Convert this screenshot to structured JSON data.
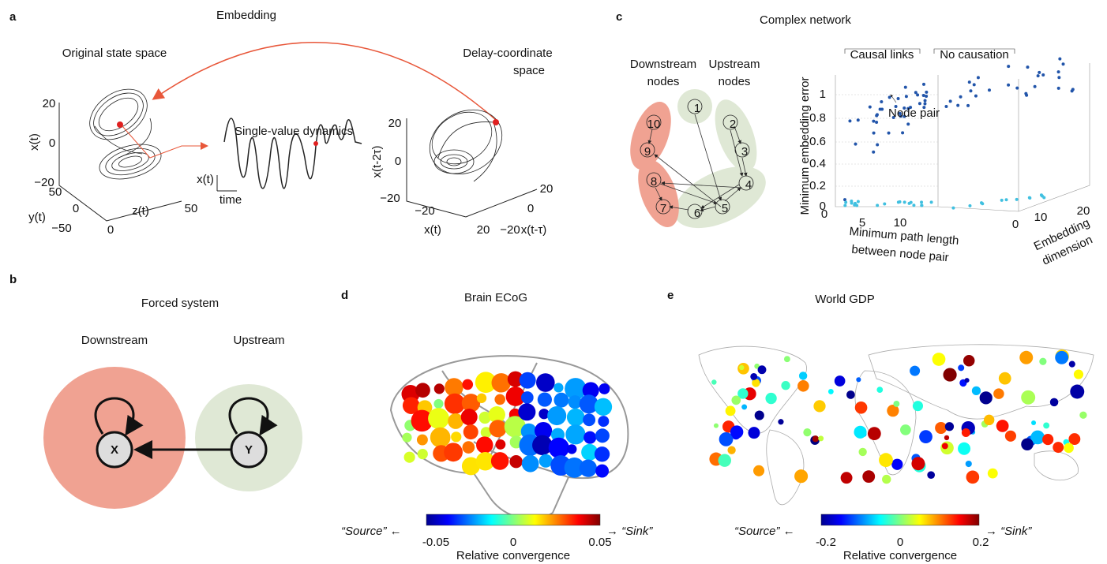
{
  "panel_a": {
    "label": "a",
    "title": "Embedding",
    "original": "Original state space",
    "delay": [
      "Delay-coordinate",
      "space"
    ],
    "single": "Single-value dynamics",
    "scale_y": "x(t)",
    "scale_x": "time",
    "left_axes": {
      "z_label": "x(t)",
      "z_ticks": [
        "20",
        "0",
        "−20"
      ],
      "y_label": "y(t)",
      "y_ticks": [
        "50",
        "0",
        "−50"
      ],
      "x_label": "z(t)",
      "x_ticks": [
        "0",
        "50"
      ]
    },
    "right_axes": {
      "z_label": "x(t-2τ)",
      "z_ticks": [
        "20",
        "0",
        "−20"
      ],
      "x_label": "x(t)",
      "x_ticks": [
        "−20",
        "20"
      ],
      "y_label": "x(t-τ)",
      "y_ticks": [
        "−20",
        "0",
        "20"
      ]
    }
  },
  "panel_b": {
    "label": "b",
    "title": "Forced system",
    "downstream": "Downstream",
    "upstream": "Upstream",
    "node_x": "X",
    "node_y": "Y"
  },
  "panel_c": {
    "label": "c",
    "title": "Complex network",
    "downstream": [
      "Downstream",
      "nodes"
    ],
    "upstream": [
      "Upstream",
      "nodes"
    ],
    "nodes": [
      "1",
      "2",
      "3",
      "4",
      "5",
      "6",
      "7",
      "8",
      "9",
      "10"
    ],
    "causal": "Causal links",
    "no_causation": "No causation",
    "node_pair": "Node pair",
    "y_label": "Minimum embedding error",
    "y_ticks": [
      "0",
      "0.2",
      "0.4",
      "0.6",
      "0.8",
      "1"
    ],
    "x_label": [
      "Minimum path length",
      "between node pair"
    ],
    "x_ticks": [
      "0",
      "5",
      "10"
    ],
    "d_label": [
      "Embedding",
      "dimension"
    ],
    "d_ticks": [
      "0",
      "10",
      "20"
    ]
  },
  "panel_d": {
    "label": "d",
    "title": "Brain ECoG",
    "source": "“Source” ←",
    "sink": "→ “Sink”",
    "ticks": [
      "-0.05",
      "0",
      "0.05"
    ],
    "colorbar_label": "Relative convergence"
  },
  "panel_e": {
    "label": "e",
    "title": "World GDP",
    "source": "“Source” ←",
    "sink": "→ “Sink”",
    "ticks": [
      "-0.2",
      "0",
      "0.2"
    ],
    "colorbar_label": "Relative convergence"
  }
}
